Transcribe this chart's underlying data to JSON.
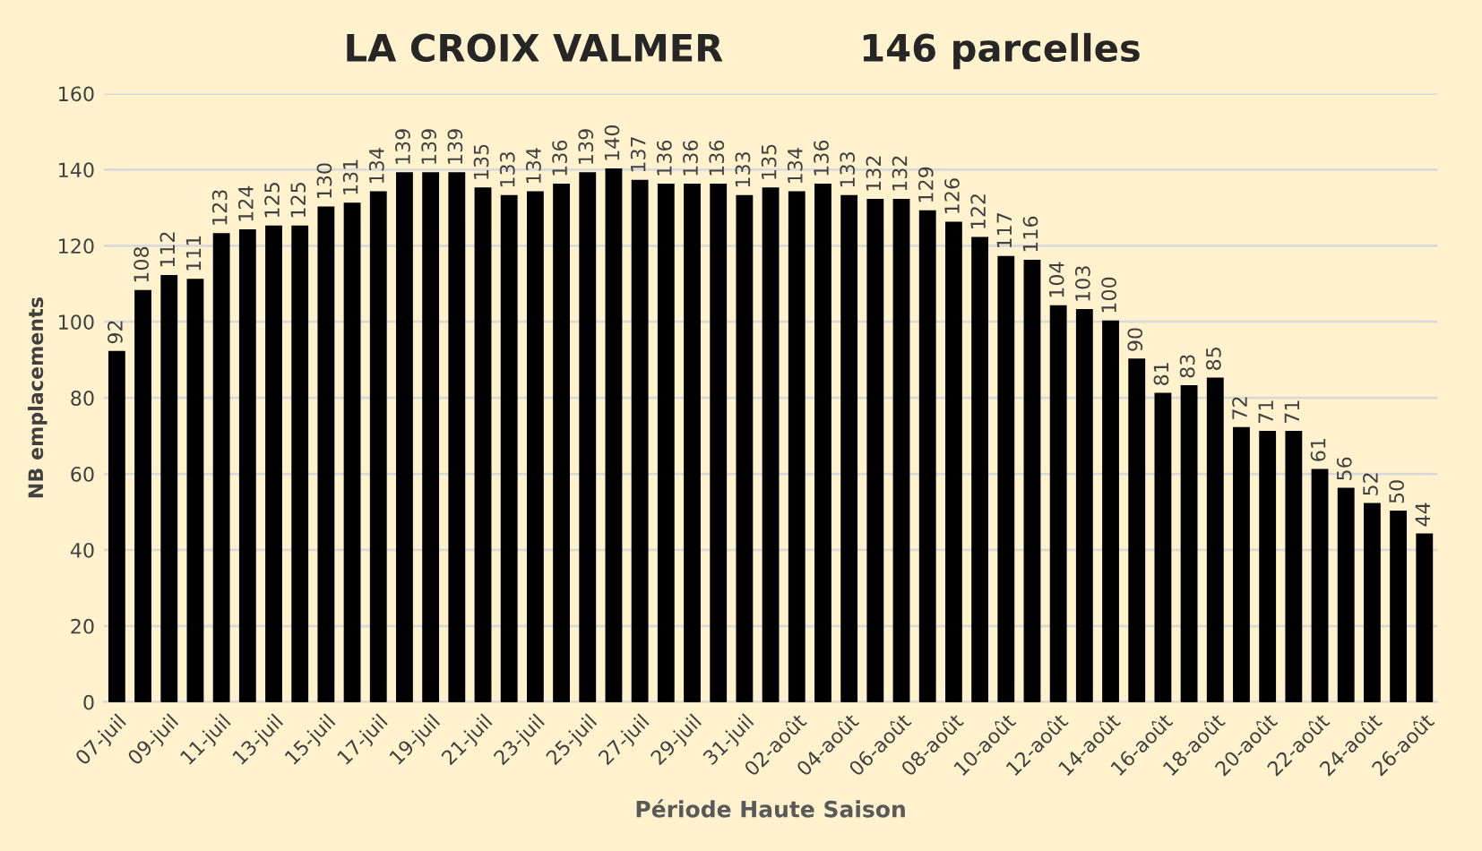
{
  "chart_data": {
    "type": "bar",
    "title": "LA CROIX VALMER",
    "subtitle": "146 parcelles",
    "xlabel": "Période Haute Saison",
    "ylabel": "NB emplacements",
    "categories": [
      "07-juil",
      null,
      "09-juil",
      null,
      "11-juil",
      null,
      "13-juil",
      null,
      "15-juil",
      null,
      "17-juil",
      null,
      "19-juil",
      null,
      "21-juil",
      null,
      "23-juil",
      null,
      "25-juil",
      null,
      "27-juil",
      null,
      "29-juil",
      null,
      "31-juil",
      null,
      "02-août",
      null,
      "04-août",
      null,
      "06-août",
      null,
      "08-août",
      null,
      "10-août",
      null,
      "12-août",
      null,
      "14-août",
      null,
      "16-août",
      null,
      "18-août",
      null,
      "20-août",
      null,
      "22-août",
      null,
      "24-août",
      null,
      "26-août"
    ],
    "values": [
      92,
      108,
      112,
      111,
      123,
      124,
      125,
      125,
      130,
      131,
      134,
      139,
      139,
      139,
      135,
      133,
      134,
      136,
      139,
      140,
      137,
      136,
      136,
      136,
      133,
      135,
      134,
      136,
      133,
      132,
      132,
      129,
      126,
      122,
      117,
      116,
      104,
      103,
      100,
      90,
      81,
      83,
      85,
      72,
      71,
      71,
      61,
      56,
      52,
      50,
      44
    ],
    "color": "#000000",
    "ylim": [
      0,
      160
    ],
    "yticks": [
      0,
      20,
      40,
      60,
      80,
      100,
      120,
      140,
      160
    ],
    "grid": "y",
    "data_labels": true,
    "legend": false
  }
}
